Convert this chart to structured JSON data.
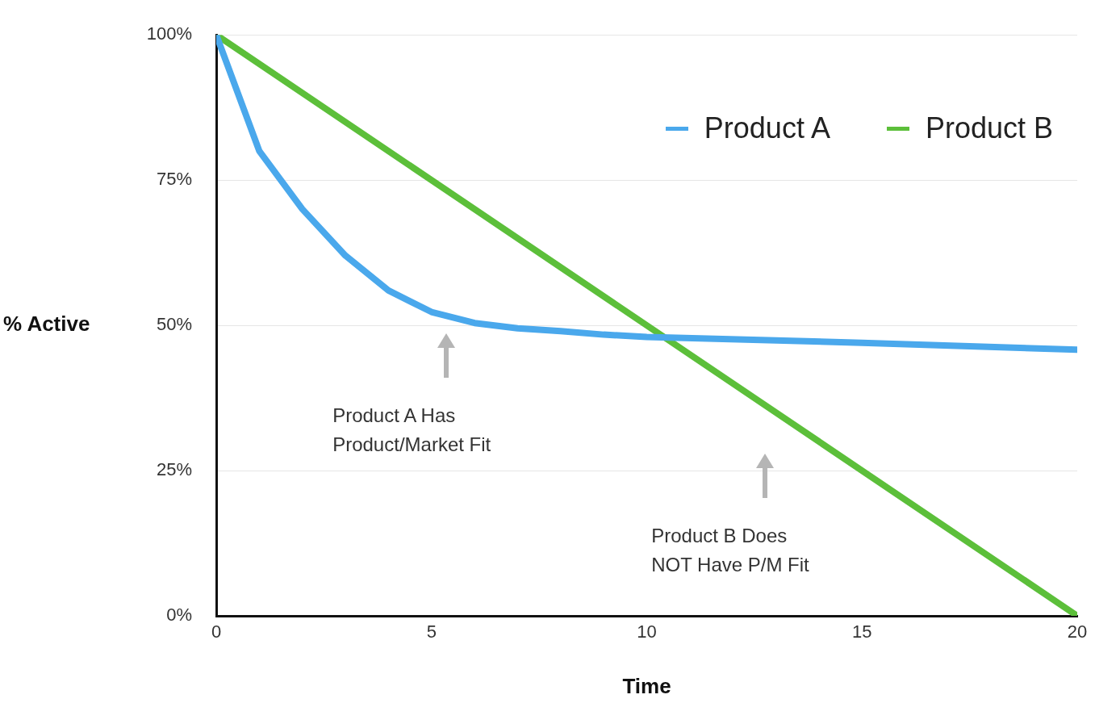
{
  "chart_data": {
    "type": "line",
    "xlabel": "Time",
    "ylabel": "% Active",
    "xlim": [
      0,
      20
    ],
    "xticks": [
      0,
      5,
      10,
      15,
      20
    ],
    "ylim": [
      0,
      100
    ],
    "yticks": [
      {
        "value": 0,
        "label": "0%"
      },
      {
        "value": 25,
        "label": "25%"
      },
      {
        "value": 50,
        "label": "50%"
      },
      {
        "value": 75,
        "label": "75%"
      },
      {
        "value": 100,
        "label": "100%"
      }
    ],
    "grid": "y",
    "legend": "top right",
    "marker": "none",
    "line_style": "solid",
    "series": [
      {
        "name": "Product A",
        "color": "#4aa8ec",
        "x": [
          0,
          1,
          2,
          3,
          4,
          5,
          6,
          7,
          8,
          9,
          10,
          15,
          20
        ],
        "values": [
          100,
          80,
          70,
          62,
          56,
          52.3,
          50.4,
          49.5,
          49,
          48.4,
          48,
          47,
          45.8
        ]
      },
      {
        "name": "Product B",
        "color": "#5cbf3a",
        "x": [
          0,
          20
        ],
        "values": [
          100,
          0
        ]
      }
    ],
    "annotations": [
      "Product A Has\nProduct/Market Fit",
      "Product B Does\nNOT Have P/M Fit"
    ]
  }
}
